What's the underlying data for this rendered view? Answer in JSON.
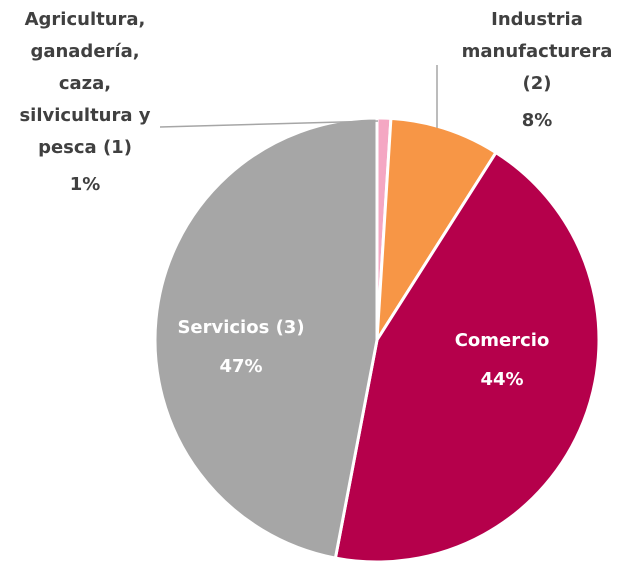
{
  "chart_data": {
    "type": "pie",
    "categories": [
      "Agricultura,\nganadería,\ncaza,\nsilvicultura y\npesca (1)",
      "Industria\nmanufacturera\n(2)",
      "Comercio",
      "Servicios (3)"
    ],
    "values": [
      1,
      8,
      44,
      47
    ],
    "value_labels": [
      "1%",
      "8%",
      "44%",
      "47%"
    ],
    "colors": [
      "#f4a7c3",
      "#f79646",
      "#b5004b",
      "#a6a6a6"
    ]
  }
}
